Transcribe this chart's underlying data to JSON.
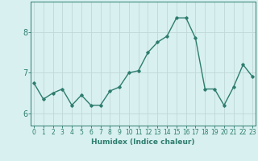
{
  "x": [
    0,
    1,
    2,
    3,
    4,
    5,
    6,
    7,
    8,
    9,
    10,
    11,
    12,
    13,
    14,
    15,
    16,
    17,
    18,
    19,
    20,
    21,
    22,
    23
  ],
  "y": [
    6.75,
    6.35,
    6.5,
    6.6,
    6.2,
    6.45,
    6.2,
    6.2,
    6.55,
    6.65,
    7.0,
    7.05,
    7.5,
    7.75,
    7.9,
    8.35,
    8.35,
    7.85,
    6.6,
    6.6,
    6.2,
    6.65,
    7.2,
    6.9
  ],
  "line_color": "#2e7d6e",
  "marker": "D",
  "marker_size": 1.8,
  "bg_color": "#d8f0f0",
  "grid_color": "#c0d8d8",
  "axis_color": "#2e7d6e",
  "xlabel": "Humidex (Indice chaleur)",
  "xlabel_fontsize": 6.5,
  "yticks": [
    6,
    7,
    8
  ],
  "xticks": [
    0,
    1,
    2,
    3,
    4,
    5,
    6,
    7,
    8,
    9,
    10,
    11,
    12,
    13,
    14,
    15,
    16,
    17,
    18,
    19,
    20,
    21,
    22,
    23
  ],
  "ylim": [
    5.7,
    8.75
  ],
  "xlim": [
    -0.3,
    23.3
  ],
  "tick_fontsize": 5.5,
  "ytick_fontsize": 7.0,
  "linewidth": 1.0
}
